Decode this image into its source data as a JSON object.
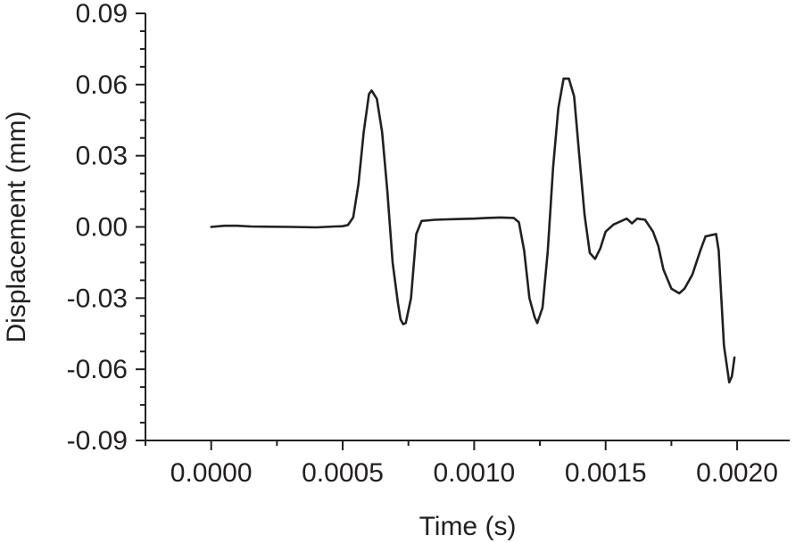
{
  "chart_data": {
    "type": "line",
    "title": "",
    "xlabel": "Time (s)",
    "ylabel": "Displacement (mm)",
    "xlim": [
      -0.00025,
      0.0022
    ],
    "ylim": [
      -0.09,
      0.09
    ],
    "x_ticks": [
      0.0,
      0.0005,
      0.001,
      0.0015,
      0.002
    ],
    "x_tick_labels": [
      "0.0000",
      "0.0005",
      "0.0010",
      "0.0015",
      "0.0020"
    ],
    "y_ticks": [
      -0.09,
      -0.06,
      -0.03,
      0.0,
      0.03,
      0.06,
      0.09
    ],
    "y_tick_labels": [
      "-0.09",
      "-0.06",
      "-0.03",
      "0.00",
      "0.03",
      "0.06",
      "0.09"
    ],
    "grid": false,
    "series": [
      {
        "color": "#231f20",
        "points": [
          [
            0.0,
            0.0
          ],
          [
            5e-05,
            0.0005
          ],
          [
            0.0001,
            0.0005
          ],
          [
            0.00015,
            0.0002
          ],
          [
            0.0002,
            0.0001
          ],
          [
            0.0003,
            0.0
          ],
          [
            0.0004,
            -0.0002
          ],
          [
            0.00047,
            0.0002
          ],
          [
            0.0005,
            0.0003
          ],
          [
            0.00052,
            0.0008
          ],
          [
            0.00054,
            0.004
          ],
          [
            0.00056,
            0.018
          ],
          [
            0.00058,
            0.04
          ],
          [
            0.0006,
            0.056
          ],
          [
            0.00061,
            0.0575
          ],
          [
            0.00063,
            0.054
          ],
          [
            0.00065,
            0.04
          ],
          [
            0.00067,
            0.015
          ],
          [
            0.00069,
            -0.015
          ],
          [
            0.00071,
            -0.032
          ],
          [
            0.00072,
            -0.039
          ],
          [
            0.00073,
            -0.041
          ],
          [
            0.00074,
            -0.0405
          ],
          [
            0.00076,
            -0.03
          ],
          [
            0.00078,
            -0.003
          ],
          [
            0.0008,
            0.0025
          ],
          [
            0.00085,
            0.003
          ],
          [
            0.0009,
            0.0032
          ],
          [
            0.001,
            0.0035
          ],
          [
            0.00105,
            0.0038
          ],
          [
            0.0011,
            0.004
          ],
          [
            0.00115,
            0.0038
          ],
          [
            0.00117,
            0.002
          ],
          [
            0.00119,
            -0.01
          ],
          [
            0.00121,
            -0.03
          ],
          [
            0.00123,
            -0.038
          ],
          [
            0.00124,
            -0.0405
          ],
          [
            0.00126,
            -0.034
          ],
          [
            0.00128,
            -0.01
          ],
          [
            0.0013,
            0.025
          ],
          [
            0.00132,
            0.05
          ],
          [
            0.00134,
            0.0625
          ],
          [
            0.00136,
            0.0625
          ],
          [
            0.00138,
            0.055
          ],
          [
            0.0014,
            0.03
          ],
          [
            0.00142,
            0.005
          ],
          [
            0.00144,
            -0.011
          ],
          [
            0.00146,
            -0.0135
          ],
          [
            0.00148,
            -0.009
          ],
          [
            0.0015,
            -0.002
          ],
          [
            0.00153,
            0.001
          ],
          [
            0.00158,
            0.0035
          ],
          [
            0.0016,
            0.0015
          ],
          [
            0.00162,
            0.0035
          ],
          [
            0.00165,
            0.003
          ],
          [
            0.00168,
            -0.002
          ],
          [
            0.0017,
            -0.008
          ],
          [
            0.00172,
            -0.018
          ],
          [
            0.00175,
            -0.026
          ],
          [
            0.00178,
            -0.028
          ],
          [
            0.0018,
            -0.026
          ],
          [
            0.00183,
            -0.02
          ],
          [
            0.00186,
            -0.01
          ],
          [
            0.00188,
            -0.004
          ],
          [
            0.0019,
            -0.0035
          ],
          [
            0.00192,
            -0.003
          ],
          [
            0.00193,
            -0.01
          ],
          [
            0.00195,
            -0.05
          ],
          [
            0.00197,
            -0.0655
          ],
          [
            0.00198,
            -0.063
          ],
          [
            0.00199,
            -0.055
          ]
        ]
      }
    ]
  }
}
